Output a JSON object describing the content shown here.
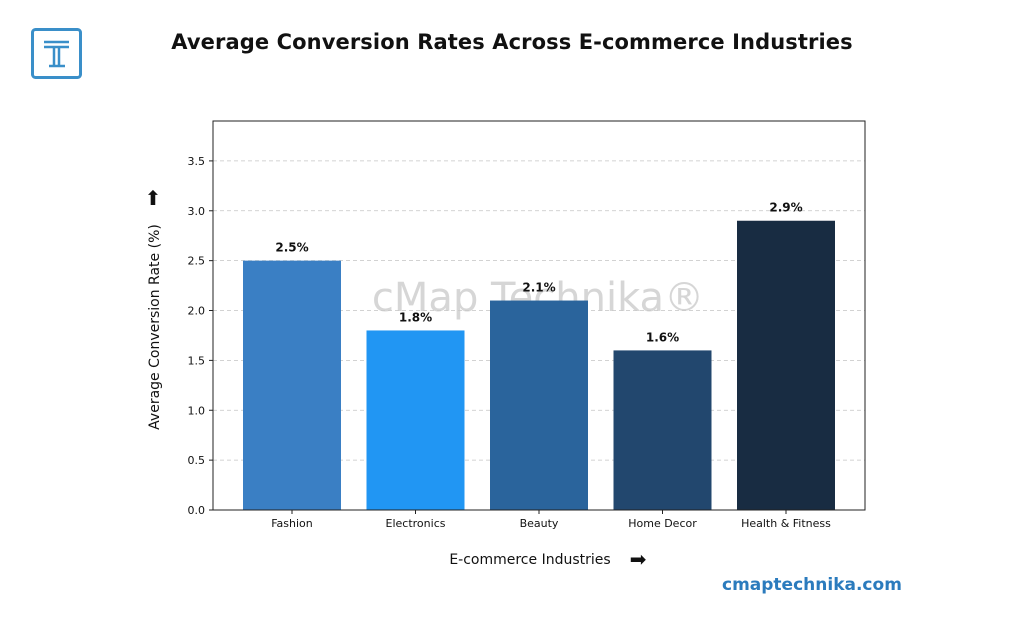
{
  "title": "Average Conversion Rates Across E-commerce Industries",
  "logo_letter": "T",
  "website": "cmaptechnika.com",
  "watermark": "cMap Technika®",
  "colors": {
    "logo": "#3a8fc9",
    "bars": [
      "#3a7fc4",
      "#2196f3",
      "#2a649c",
      "#22476e",
      "#182c42"
    ]
  },
  "chart_data": {
    "type": "bar",
    "categories": [
      "Fashion",
      "Electronics",
      "Beauty",
      "Home Decor",
      "Health & Fitness"
    ],
    "values": [
      2.5,
      1.8,
      2.1,
      1.6,
      2.9
    ],
    "data_labels": [
      "2.5%",
      "1.8%",
      "2.1%",
      "1.6%",
      "2.9%"
    ],
    "xlabel": "E-commerce Industries",
    "ylabel": "Average Conversion Rate (%)",
    "ylim": [
      0,
      3.9
    ],
    "yticks": [
      0.0,
      0.5,
      1.0,
      1.5,
      2.0,
      2.5,
      3.0,
      3.5
    ],
    "ytick_labels": [
      "0.0",
      "0.5",
      "1.0",
      "1.5",
      "2.0",
      "2.5",
      "3.0",
      "3.5"
    ],
    "grid": true,
    "x_arrow": "➡",
    "y_arrow": "⬆"
  }
}
